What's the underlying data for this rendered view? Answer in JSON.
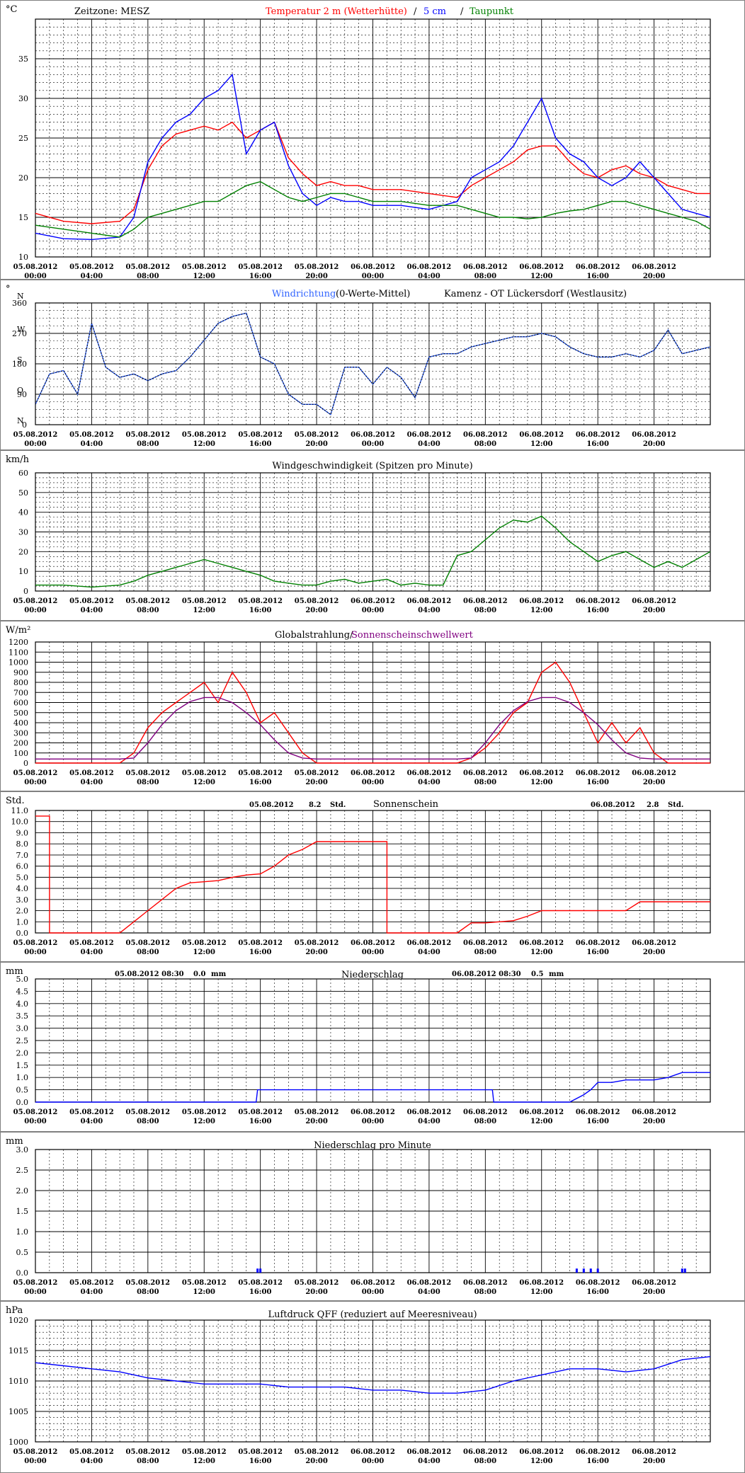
{
  "x_labels": {
    "dates": [
      "05.08.2012",
      "05.08.2012",
      "05.08.2012",
      "05.08.2012",
      "05.08.2012",
      "05.08.2012",
      "06.08.2012",
      "06.08.2012",
      "06.08.2012",
      "06.08.2012",
      "06.08.2012",
      "06.08.2012"
    ],
    "times": [
      "00:00",
      "04:00",
      "08:00",
      "12:00",
      "16:00",
      "20:00",
      "00:00",
      "04:00",
      "08:00",
      "12:00",
      "16:00",
      "20:00"
    ]
  },
  "temp": {
    "unit": "°C",
    "title_parts": [
      {
        "text": "Zeitzone: MESZ",
        "color": "#000000"
      },
      {
        "text": "Temperatur 2 m (Wetterhütte)",
        "color": "#ff0000"
      },
      {
        "text": "/",
        "color": "#000000"
      },
      {
        "text": "5 cm",
        "color": "#0000ff"
      },
      {
        "text": "/",
        "color": "#000000"
      },
      {
        "text": "Taupunkt",
        "color": "#008000"
      }
    ],
    "yticks": [
      "10",
      "15",
      "20",
      "25",
      "30",
      "35"
    ],
    "colors": {
      "temp2m": "#ff0000",
      "temp5cm": "#0000ff",
      "dewpoint": "#008000"
    }
  },
  "wind_dir": {
    "title_parts": [
      {
        "text": "Windrichtung",
        "color": "#3366ff"
      },
      {
        "text": "(0-Werte-Mittel)",
        "color": "#000000"
      },
      {
        "text": "Kamenz - OT Lückersdorf (Westlausitz)",
        "color": "#000000"
      }
    ],
    "unit": "°",
    "ytick_values": [
      "0",
      "90",
      "180",
      "270",
      "360"
    ],
    "ytick_dirs": [
      "N",
      "O",
      "S",
      "W",
      "N"
    ]
  },
  "wind_speed": {
    "unit": "km/h",
    "title": "Windgeschwindigkeit (Spitzen pro Minute)",
    "yticks": [
      "0",
      "10",
      "20",
      "30",
      "40",
      "50",
      "60"
    ]
  },
  "radiation": {
    "unit": "W/m²",
    "title_parts": [
      {
        "text": "Globalstrahlung/",
        "color": "#000000"
      },
      {
        "text": "Sonnenscheinschwellwert",
        "color": "#800080"
      }
    ],
    "yticks": [
      "0",
      "100",
      "200",
      "300",
      "400",
      "500",
      "600",
      "700",
      "800",
      "900",
      "1000",
      "1100",
      "1200"
    ]
  },
  "sunshine": {
    "unit": "Std.",
    "title": "Sonnenschein",
    "day1_date": "05.08.2012",
    "day1_value": "8.2",
    "day1_unit": "Std.",
    "day2_date": "06.08.2012",
    "day2_value": "2.8",
    "day2_unit": "Std.",
    "yticks": [
      "0.0",
      "1.0",
      "2.0",
      "3.0",
      "4.0",
      "5.0",
      "6.0",
      "7.0",
      "8.0",
      "9.0",
      "10.0",
      "11.0"
    ]
  },
  "precip": {
    "unit": "mm",
    "title": "Niederschlag",
    "day1_label": "05.08.2012 08:30",
    "day1_value": "0.0",
    "day1_unit": "mm",
    "day2_label": "06.08.2012 08:30",
    "day2_value": "0.5",
    "day2_unit": "mm",
    "yticks": [
      "0.0",
      "0.5",
      "1.0",
      "1.5",
      "2.0",
      "2.5",
      "3.0",
      "3.5",
      "4.0",
      "4.5",
      "5.0"
    ]
  },
  "precip_min": {
    "unit": "mm",
    "title": "Niederschlag pro Minute",
    "yticks": [
      "0.0",
      "0.5",
      "1.0",
      "1.5",
      "2.0",
      "2.5",
      "3.0"
    ]
  },
  "pressure": {
    "unit": "hPa",
    "title": "Luftdruck QFF (reduziert auf Meeresniveau)",
    "yticks": [
      "1000",
      "1005",
      "1010",
      "1015",
      "1020"
    ]
  },
  "chart_data": [
    {
      "type": "line",
      "ylabel": "°C",
      "ylim": [
        10,
        40
      ],
      "x_hours": [
        0,
        2,
        4,
        6,
        7,
        8,
        9,
        10,
        11,
        12,
        13,
        14,
        15,
        16,
        17,
        18,
        19,
        20,
        21,
        22,
        23,
        24,
        26,
        28,
        30,
        31,
        32,
        33,
        34,
        35,
        36,
        37,
        38,
        39,
        40,
        41,
        42,
        43,
        44,
        45,
        46,
        47,
        48
      ],
      "series": [
        {
          "name": "Temperatur 2 m (Wetterhütte)",
          "values": [
            15.5,
            14.5,
            14.2,
            14.5,
            16,
            21,
            24,
            25.5,
            26,
            26.5,
            26,
            27,
            25,
            26,
            27,
            22.5,
            20.5,
            19,
            19.5,
            19,
            19,
            18.5,
            18.5,
            18,
            17.5,
            19,
            20,
            21,
            22,
            23.5,
            24,
            24,
            22,
            20.5,
            20,
            21,
            21.5,
            20.5,
            20,
            19,
            18.5,
            18,
            18
          ]
        },
        {
          "name": "5 cm",
          "values": [
            13,
            12.3,
            12.2,
            12.5,
            15,
            22,
            25,
            27,
            28,
            30,
            31,
            33,
            23,
            26,
            27,
            21.5,
            18,
            16.5,
            17.5,
            17,
            17,
            16.5,
            16.5,
            16,
            17,
            20,
            21,
            22,
            24,
            27,
            30,
            25,
            23,
            22,
            20,
            19,
            20,
            22,
            20,
            18,
            16,
            15.5,
            15
          ]
        },
        {
          "name": "Taupunkt",
          "values": [
            14,
            13.5,
            13,
            12.5,
            13.5,
            15,
            15.5,
            16,
            16.5,
            17,
            17,
            18,
            19,
            19.5,
            18.5,
            17.5,
            17,
            17.5,
            18,
            18,
            17.5,
            17,
            17,
            16.5,
            16.5,
            16,
            15.5,
            15,
            15,
            14.8,
            15,
            15.5,
            15.8,
            16,
            16.5,
            17,
            17,
            16.5,
            16,
            15.5,
            15,
            14.5,
            13.5
          ]
        }
      ]
    },
    {
      "type": "line",
      "ylabel": "°",
      "ylim": [
        0,
        360
      ],
      "x_hours": [
        0,
        1,
        2,
        3,
        4,
        5,
        6,
        7,
        8,
        9,
        10,
        11,
        12,
        13,
        14,
        15,
        16,
        17,
        18,
        19,
        20,
        21,
        22,
        23,
        24,
        25,
        26,
        27,
        28,
        29,
        30,
        31,
        32,
        33,
        34,
        35,
        36,
        37,
        38,
        39,
        40,
        41,
        42,
        43,
        44,
        45,
        46,
        47,
        48
      ],
      "series": [
        {
          "name": "Windrichtung",
          "values": [
            60,
            150,
            160,
            90,
            300,
            170,
            140,
            150,
            130,
            150,
            160,
            200,
            250,
            300,
            320,
            330,
            200,
            180,
            90,
            60,
            60,
            30,
            170,
            170,
            120,
            170,
            140,
            80,
            200,
            210,
            210,
            230,
            240,
            250,
            260,
            260,
            270,
            260,
            230,
            210,
            200,
            200,
            210,
            200,
            220,
            280,
            210,
            220,
            230
          ]
        }
      ]
    },
    {
      "type": "line",
      "ylabel": "km/h",
      "ylim": [
        0,
        60
      ],
      "x_hours": [
        0,
        2,
        4,
        6,
        7,
        8,
        9,
        10,
        11,
        12,
        13,
        14,
        15,
        16,
        17,
        18,
        19,
        20,
        21,
        22,
        23,
        24,
        25,
        26,
        27,
        28,
        29,
        30,
        31,
        32,
        33,
        34,
        35,
        36,
        37,
        38,
        39,
        40,
        41,
        42,
        43,
        44,
        45,
        46,
        47,
        48
      ],
      "series": [
        {
          "name": "Windgeschwindigkeit",
          "values": [
            3,
            3,
            2,
            3,
            5,
            8,
            10,
            12,
            14,
            16,
            14,
            12,
            10,
            8,
            5,
            4,
            3,
            3,
            5,
            6,
            4,
            5,
            6,
            3,
            4,
            3,
            3,
            18,
            20,
            26,
            32,
            36,
            35,
            38,
            32,
            25,
            20,
            15,
            18,
            20,
            16,
            12,
            15,
            12,
            16,
            20
          ]
        }
      ]
    },
    {
      "type": "line",
      "ylabel": "W/m²",
      "ylim": [
        0,
        1200
      ],
      "x_hours": [
        0,
        6,
        7,
        8,
        9,
        10,
        11,
        12,
        13,
        14,
        15,
        16,
        17,
        18,
        19,
        20,
        24,
        30,
        31,
        32,
        33,
        34,
        35,
        36,
        37,
        38,
        39,
        40,
        41,
        42,
        43,
        44,
        45,
        48
      ],
      "series": [
        {
          "name": "Globalstrahlung",
          "values": [
            0,
            0,
            100,
            350,
            500,
            600,
            700,
            800,
            600,
            900,
            700,
            400,
            500,
            300,
            100,
            0,
            0,
            0,
            50,
            150,
            300,
            500,
            600,
            900,
            1000,
            800,
            500,
            200,
            400,
            200,
            350,
            100,
            0,
            0
          ]
        },
        {
          "name": "Sonnenscheinschwellwert",
          "values": [
            40,
            40,
            50,
            200,
            380,
            520,
            610,
            650,
            650,
            600,
            500,
            380,
            230,
            100,
            50,
            40,
            40,
            40,
            50,
            200,
            380,
            520,
            610,
            650,
            650,
            600,
            500,
            380,
            230,
            100,
            50,
            40,
            40,
            40
          ]
        }
      ]
    },
    {
      "type": "line",
      "ylabel": "Std.",
      "ylim": [
        0,
        11
      ],
      "x_hours": [
        0,
        1,
        1,
        6,
        7,
        8,
        9,
        10,
        11,
        12,
        13,
        14,
        15,
        16,
        17,
        18,
        19,
        20,
        21,
        22,
        24,
        25,
        25,
        30,
        31,
        32,
        33,
        34,
        35,
        36,
        37,
        38,
        39,
        40,
        41,
        42,
        43,
        44,
        45,
        48
      ],
      "series": [
        {
          "name": "Sonnenschein",
          "values": [
            10.5,
            10.5,
            0,
            0,
            1,
            2,
            3,
            4,
            4.5,
            4.6,
            4.7,
            5,
            5.2,
            5.3,
            6,
            7,
            7.5,
            8.2,
            8.2,
            8.2,
            8.2,
            8.2,
            0,
            0,
            0.9,
            0.9,
            1,
            1.1,
            1.5,
            2,
            2,
            2,
            2,
            2,
            2,
            2,
            2.8,
            2.8,
            2.8,
            2.8
          ]
        }
      ]
    },
    {
      "type": "line",
      "ylabel": "mm",
      "ylim": [
        0,
        5
      ],
      "x_hours": [
        0,
        15.7,
        15.8,
        32.5,
        32.6,
        38,
        39,
        39.5,
        40,
        41,
        42,
        43,
        44,
        45,
        46,
        48
      ],
      "series": [
        {
          "name": "Niederschlag",
          "values": [
            0,
            0,
            0.5,
            0.5,
            0,
            0,
            0.3,
            0.5,
            0.8,
            0.8,
            0.9,
            0.9,
            0.9,
            1.0,
            1.2,
            1.2
          ]
        }
      ]
    },
    {
      "type": "bar",
      "ylabel": "mm",
      "ylim": [
        0,
        3
      ],
      "x_hours": [
        15.8,
        16.0,
        38.5,
        39.0,
        39.5,
        40.0,
        46.0,
        46.2
      ],
      "series": [
        {
          "name": "Niederschlag pro Minute",
          "values": [
            0.1,
            0.1,
            0.1,
            0.1,
            0.1,
            0.1,
            0.1,
            0.1
          ]
        }
      ]
    },
    {
      "type": "line",
      "ylabel": "hPa",
      "ylim": [
        1000,
        1020
      ],
      "x_hours": [
        0,
        2,
        4,
        6,
        8,
        10,
        12,
        14,
        16,
        18,
        20,
        22,
        24,
        26,
        28,
        30,
        32,
        34,
        36,
        38,
        40,
        42,
        44,
        46,
        48
      ],
      "series": [
        {
          "name": "Luftdruck QFF",
          "values": [
            1013,
            1012.5,
            1012,
            1011.5,
            1010.5,
            1010,
            1009.5,
            1009.5,
            1009.5,
            1009,
            1009,
            1009,
            1008.5,
            1008.5,
            1008,
            1008,
            1008.5,
            1010,
            1011,
            1012,
            1012,
            1011.5,
            1012,
            1013.5,
            1014
          ]
        }
      ]
    }
  ]
}
